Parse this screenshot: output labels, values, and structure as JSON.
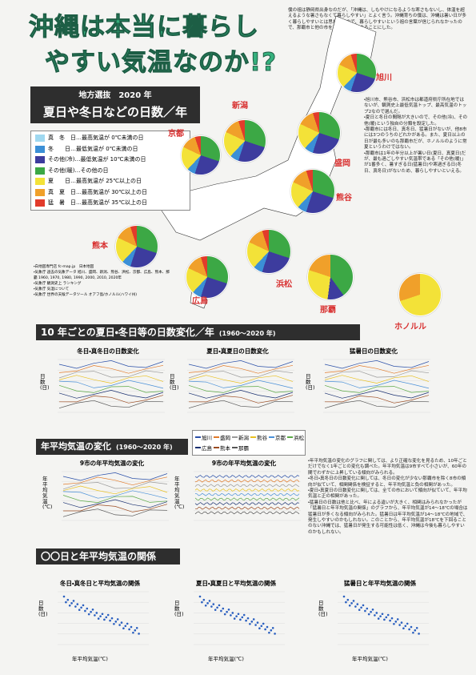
{
  "title": [
    "沖縄は本当に暮らし",
    "やすい気温なのか!?"
  ],
  "intro": "僕の祖は静岡県出身なのだが、「沖縄は、しもやけになるような寒さもないし、体温を超えるような暑さもなくて暮らしやすい」とよく言う。沖縄育ちの僕は、沖縄は暑い日が多く暮らしやすいとは思わないので、暮らしやすいという祖の言葉が信じられなかったので、那覇市と他の市を比較し、検証することにした。",
  "section1": {
    "title": "地方選抜　2020 年",
    "subtitle": "夏日や冬日などの日数／年"
  },
  "legend": [
    {
      "name": "真　冬　日…最高気温が 0℃未満の日",
      "color": "#9fd8f0"
    },
    {
      "name": "冬　　日…最低気温が 0℃未満の日",
      "color": "#3b8fd6"
    },
    {
      "name": "その他(冷)…最低気温が 10℃未満の日",
      "color": "#3d3c9e"
    },
    {
      "name": "その他(暖)…その他の日",
      "color": "#3ca845"
    },
    {
      "name": "夏　　日…最高気温が 25℃以上の日",
      "color": "#f3e238"
    },
    {
      "name": "真　夏　日…最高気温が 30℃以上の日",
      "color": "#f0a02a"
    },
    {
      "name": "猛　暑　日…最高気温が 35℃以上の日",
      "color": "#e23b2b"
    }
  ],
  "cities": [
    "旭川",
    "盛岡",
    "新潟",
    "京都",
    "熊谷",
    "熊本",
    "浜松",
    "広島",
    "那覇",
    "ホノルル"
  ],
  "notes1": [
    "・旭川市、熊谷市、浜松市は都道府県庁所在地ではないが、観測史上最低気温トップ、最高気温のトップ2なので選んだ。",
    "・夏日と冬日の間隔が大きいので、その他(冷)、その他(暖)という独自の分類を設定した。",
    "・那覇市には冬日、真冬日、猛暑日がないが、他8市には3つのうちのどれかがある。また、夏日以上の日が最も多いのも那覇市だが、ホノルルのように常夏というわけではない。",
    "・那覇市は1年の半分以上が暑い日(夏日、真夏日)だが、最も過ごしやすい気温帯である「その他(暖)」が1番多く、暑すぎる日(猛暑日)や寒過ぎる日(冬日、真冬日)がないため、暮らしやすいといえる。"
  ],
  "sources": [
    "・白地図専門店 fc-map.jp　日本地図",
    "・気象庁 過去の気象データ 旭川、盛岡、新潟、熊谷、浜松、京都、広島、熊本、那覇 1960, 1970, 1980, 1990, 2000, 2010, 2020年",
    "・気象庁 観測史上 ランキング",
    "・気象庁 気温について",
    "・気象庁 世界の天候データツール オアフ島/ホノルル(ハワイ州)"
  ],
  "section2": {
    "title": "10 年ごとの夏日・冬日等の日数変化／年",
    "range": "(1960～2020 年)"
  },
  "charts2": [
    "冬日・真冬日の日数変化",
    "夏日・真夏日の日数変化",
    "猛暑日の日数変化"
  ],
  "axis_days": "日数(日)",
  "axis_temp": "年平均気温(℃)",
  "section3": {
    "title": "年平均気温の変化",
    "range": "(1960～2020 年)"
  },
  "charts3": [
    "9市の年平均気温の変化",
    "9市の年平均気温の変化"
  ],
  "city_legend": [
    {
      "name": "旭川",
      "color": "#2a4fa8"
    },
    {
      "name": "盛岡",
      "color": "#e07a2a"
    },
    {
      "name": "新潟",
      "color": "#9a9a9a"
    },
    {
      "name": "熊谷",
      "color": "#e8c020"
    },
    {
      "name": "京都",
      "color": "#4a90d8"
    },
    {
      "name": "浜松",
      "color": "#5aa845"
    },
    {
      "name": "広島",
      "color": "#1a3070"
    },
    {
      "name": "熊本",
      "color": "#9a4a20"
    },
    {
      "name": "那覇",
      "color": "#555555"
    }
  ],
  "notes3": [
    "・年平均気温の変化のグラフに関しては、より正確な変化を見るため、10年ごとだけでなく1年ごとの変化も調べた。年平均気温は9市すべて小さいが、60年の間でわずかに上昇している傾向がみられる。",
    "・冬日・真冬日の日数変化に関しては、冬日の変化が少ない那覇市を除く8市の傾向が似ていて、相関関係を検証すると、年平均気温と負の相関があった。",
    "・夏日・真夏日の日数変化に関しては、全ての市において傾向が似ていて、年平均気温と正の相関があった。",
    "・猛暑日の日数は他と比べ、年による違いが大きく、相関はみられなかったが「猛暑日と年平均気温の関係」のグラフから、年平均気温が14～18℃の場合は猛暑日が多くなる傾向がみられた。猛暑日は年平均気温が14～18℃の地域で、発生しやすいのかもしれない。このことから、年平均気温が18℃を下回ることのない沖縄では、猛暑日が発生する可能性は低く、沖縄は今後も暮らしやすいのかもしれない。"
  ],
  "section4": {
    "title": "〇〇日と年平均気温の関係"
  },
  "charts4": [
    "冬日・真冬日と平均気温の関係",
    "夏日・真夏日と平均気温の関係",
    "猛暑日と年平均気温の関係"
  ]
}
